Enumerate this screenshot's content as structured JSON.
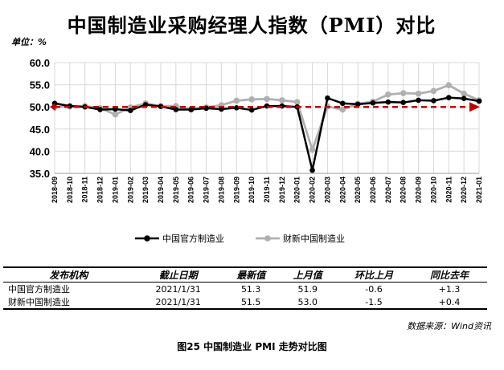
{
  "chart_data": {
    "type": "line",
    "title": "中国制造业采购经理人指数（PMI）对比",
    "unit_label": "单位：%",
    "ylim": [
      35.0,
      60.0
    ],
    "yticks": [
      "60.0",
      "55.0",
      "50.0",
      "45.0",
      "40.0",
      "35.0"
    ],
    "x": [
      "2018-09",
      "2018-10",
      "2018-11",
      "2018-12",
      "2019-01",
      "2019-02",
      "2019-03",
      "2019-04",
      "2019-05",
      "2019-06",
      "2019-07",
      "2019-08",
      "2019-09",
      "2019-10",
      "2019-11",
      "2019-12",
      "2020-01",
      "2020-02",
      "2020-03",
      "2020-04",
      "2020-05",
      "2020-06",
      "2020-07",
      "2020-08",
      "2020-09",
      "2020-10",
      "2020-11",
      "2020-12",
      "2021-01"
    ],
    "grid": true,
    "legend_position": "bottom",
    "reference_line": 50.0,
    "series": [
      {
        "name": "中国官方制造业",
        "color": "#000000",
        "values": [
          50.8,
          50.2,
          50.0,
          49.4,
          49.5,
          49.2,
          50.5,
          50.1,
          49.4,
          49.4,
          49.7,
          49.5,
          49.8,
          49.3,
          50.2,
          50.2,
          50.0,
          35.7,
          52.0,
          50.8,
          50.6,
          50.9,
          51.1,
          51.0,
          51.5,
          51.4,
          52.1,
          51.9,
          51.3
        ]
      },
      {
        "name": "财新中国制造业",
        "color": "#b0b0b0",
        "values": [
          50.0,
          50.1,
          50.2,
          49.7,
          48.3,
          49.9,
          50.8,
          50.2,
          50.2,
          49.4,
          49.9,
          50.4,
          51.4,
          51.7,
          51.8,
          51.5,
          51.1,
          40.3,
          50.1,
          49.4,
          50.7,
          51.2,
          52.8,
          53.1,
          53.0,
          53.6,
          54.9,
          53.0,
          51.5
        ]
      }
    ]
  },
  "table": {
    "headers": [
      "发布机构",
      "截止日期",
      "最新值",
      "上月值",
      "环比上月",
      "同比去年"
    ],
    "rows": [
      [
        "中国官方制造业",
        "2021/1/31",
        "51.3",
        "51.9",
        "-0.6",
        "+1.3"
      ],
      [
        "财新中国制造业",
        "2021/1/31",
        "51.5",
        "53.0",
        "-1.5",
        "+0.4"
      ]
    ]
  },
  "source": "数据来源：Wind资讯",
  "caption": "图25    中国制造业 PMI 走势对比图",
  "colors": {
    "official": "#000000",
    "caixin": "#b0b0b0",
    "reference": "#c00000",
    "grid": "#d9d9d9"
  }
}
